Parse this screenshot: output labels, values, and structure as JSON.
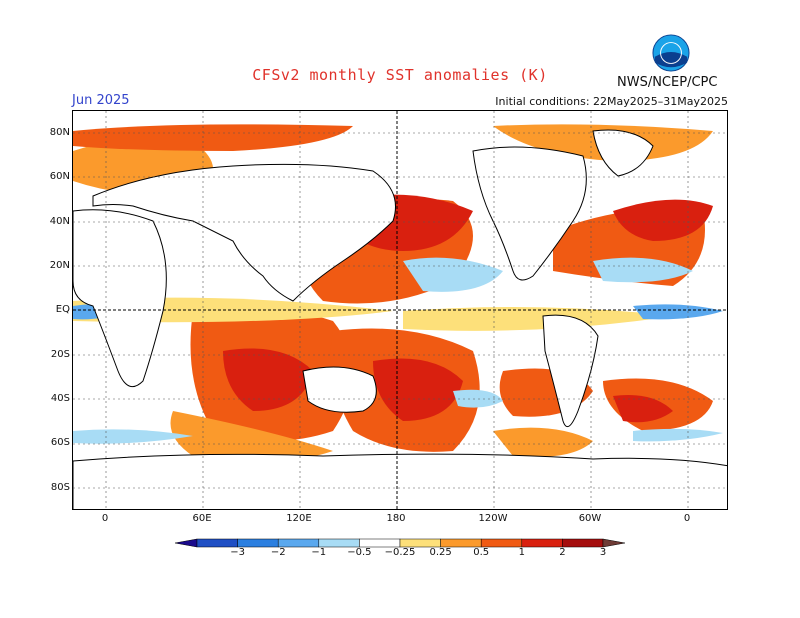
{
  "title": "CFSv2 monthly SST anomalies (K)",
  "month_label": "Jun 2025",
  "initial_conditions": "Initial conditions: 22May2025–31May2025",
  "agency": "NWS/NCEP/CPC",
  "logo_text": "NOAA",
  "lat_labels": [
    "80N",
    "60N",
    "40N",
    "20N",
    "EQ",
    "20S",
    "40S",
    "60S",
    "80S"
  ],
  "lon_labels": [
    "0",
    "60E",
    "120E",
    "180",
    "120W",
    "60W",
    "0"
  ],
  "colorbar": {
    "labels": [
      "−3",
      "−2",
      "−1",
      "−0.5",
      "−0.25",
      "0.25",
      "0.5",
      "1",
      "2",
      "3"
    ],
    "colors": [
      "#1a0a8c",
      "#1f4fc4",
      "#2b7fe0",
      "#5aa8ee",
      "#a8dcf5",
      "#ffffff",
      "#fde07a",
      "#fb9a2c",
      "#f05a13",
      "#d9200f",
      "#a50d0d",
      "#6e3b35"
    ]
  },
  "colors": {
    "title": "#e0322b",
    "month": "#3344cc",
    "land": "#ffffff",
    "warm_strong": "#d9200f",
    "warm": "#f05a13",
    "warm_light": "#fb9a2c",
    "warm_faint": "#fde07a",
    "cool_faint": "#a8dcf5",
    "cool": "#5aa8ee"
  }
}
